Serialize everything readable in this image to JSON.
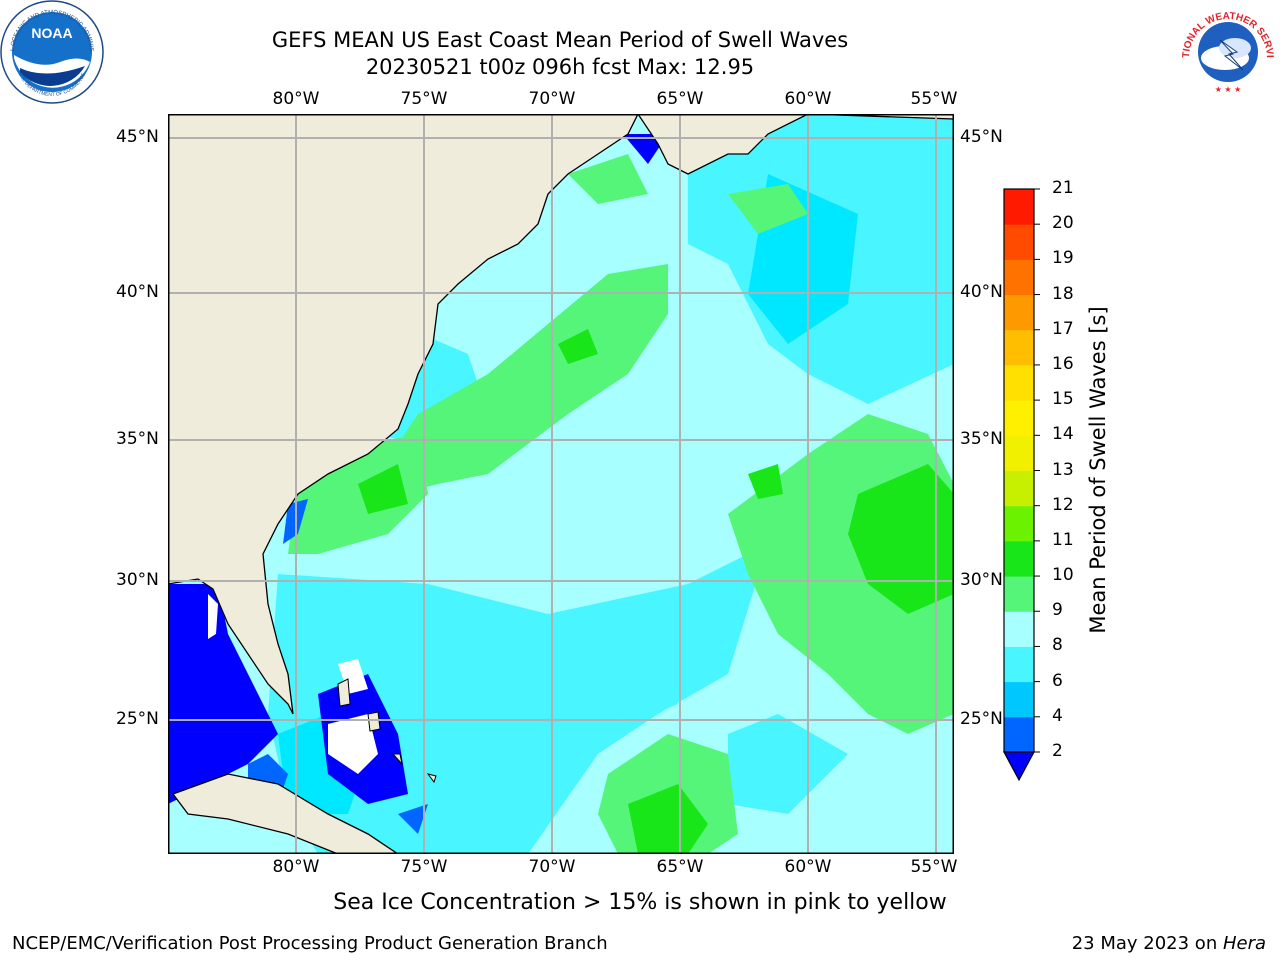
{
  "title": {
    "line1": "GEFS MEAN US East Coast Mean Period of Swell Waves",
    "line2": "20230521 t00z 096h fcst   Max: 12.95"
  },
  "logos": {
    "left": {
      "name": "NOAA",
      "ring_text": "NATIONAL OCEANIC AND ATMOSPHERIC ADMINISTRATION",
      "ring_text_bottom": "U.S. DEPARTMENT OF COMMERCE"
    },
    "right": {
      "name": "NATIONAL WEATHER SERVICE"
    }
  },
  "map": {
    "lon_labels": [
      "80°W",
      "75°W",
      "70°W",
      "65°W",
      "60°W",
      "55°W"
    ],
    "lat_labels": [
      "45°N",
      "40°N",
      "35°N",
      "30°N",
      "25°N"
    ],
    "colors": {
      "land": "#efecdc",
      "ocean_base": "#a8ffff",
      "grid": "#b0b0b0"
    }
  },
  "colorbar": {
    "title": "Mean Period of Swell Waves [s]",
    "ticks": [
      "2",
      "4",
      "6",
      "8",
      "9",
      "10",
      "11",
      "12",
      "13",
      "14",
      "15",
      "16",
      "17",
      "18",
      "19",
      "20",
      "21"
    ],
    "colors": [
      "#0066ff",
      "#00c8ff",
      "#49f5ff",
      "#a8ffff",
      "#55f57a",
      "#19e619",
      "#6af200",
      "#c6f000",
      "#f0f000",
      "#fff000",
      "#ffe000",
      "#ffbf00",
      "#ff9900",
      "#ff7200",
      "#ff4b00",
      "#ff1a00"
    ],
    "extend_color": "#0000ff"
  },
  "footer": {
    "note": "Sea Ice Concentration > 15% is shown in pink to yellow",
    "credit_left": "NCEP/EMC/Verification Post Processing Product Generation Branch",
    "credit_right_date": "23 May 2023 on ",
    "credit_right_machine": "Hera"
  }
}
